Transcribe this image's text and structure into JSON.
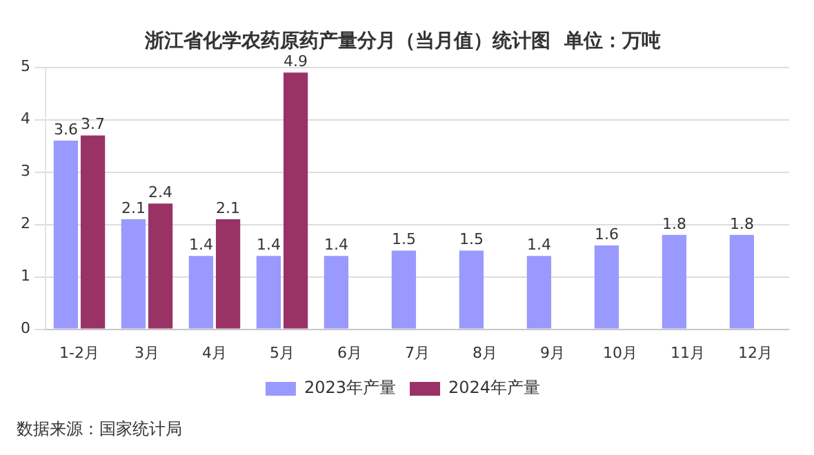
{
  "chart_data": {
    "type": "bar",
    "title": "浙江省化学农药原药产量分月（当月值）统计图  单位：万吨",
    "categories": [
      "1-2月",
      "3月",
      "4月",
      "5月",
      "6月",
      "7月",
      "8月",
      "9月",
      "10月",
      "11月",
      "12月"
    ],
    "series": [
      {
        "name": "2023年产量",
        "color": "#9999ff",
        "values": [
          3.6,
          2.1,
          1.4,
          1.4,
          1.4,
          1.5,
          1.5,
          1.4,
          1.6,
          1.8,
          1.8
        ]
      },
      {
        "name": "2024年产量",
        "color": "#993366",
        "values": [
          3.7,
          2.4,
          2.1,
          4.9,
          null,
          null,
          null,
          null,
          null,
          null,
          null
        ]
      }
    ],
    "ylim": [
      0,
      5
    ],
    "yticks": [
      0,
      1,
      2,
      3,
      4,
      5
    ],
    "grid": "y",
    "legend": "bottom",
    "data_labels": true,
    "annotations": [
      "数据来源：国家统计局"
    ]
  }
}
